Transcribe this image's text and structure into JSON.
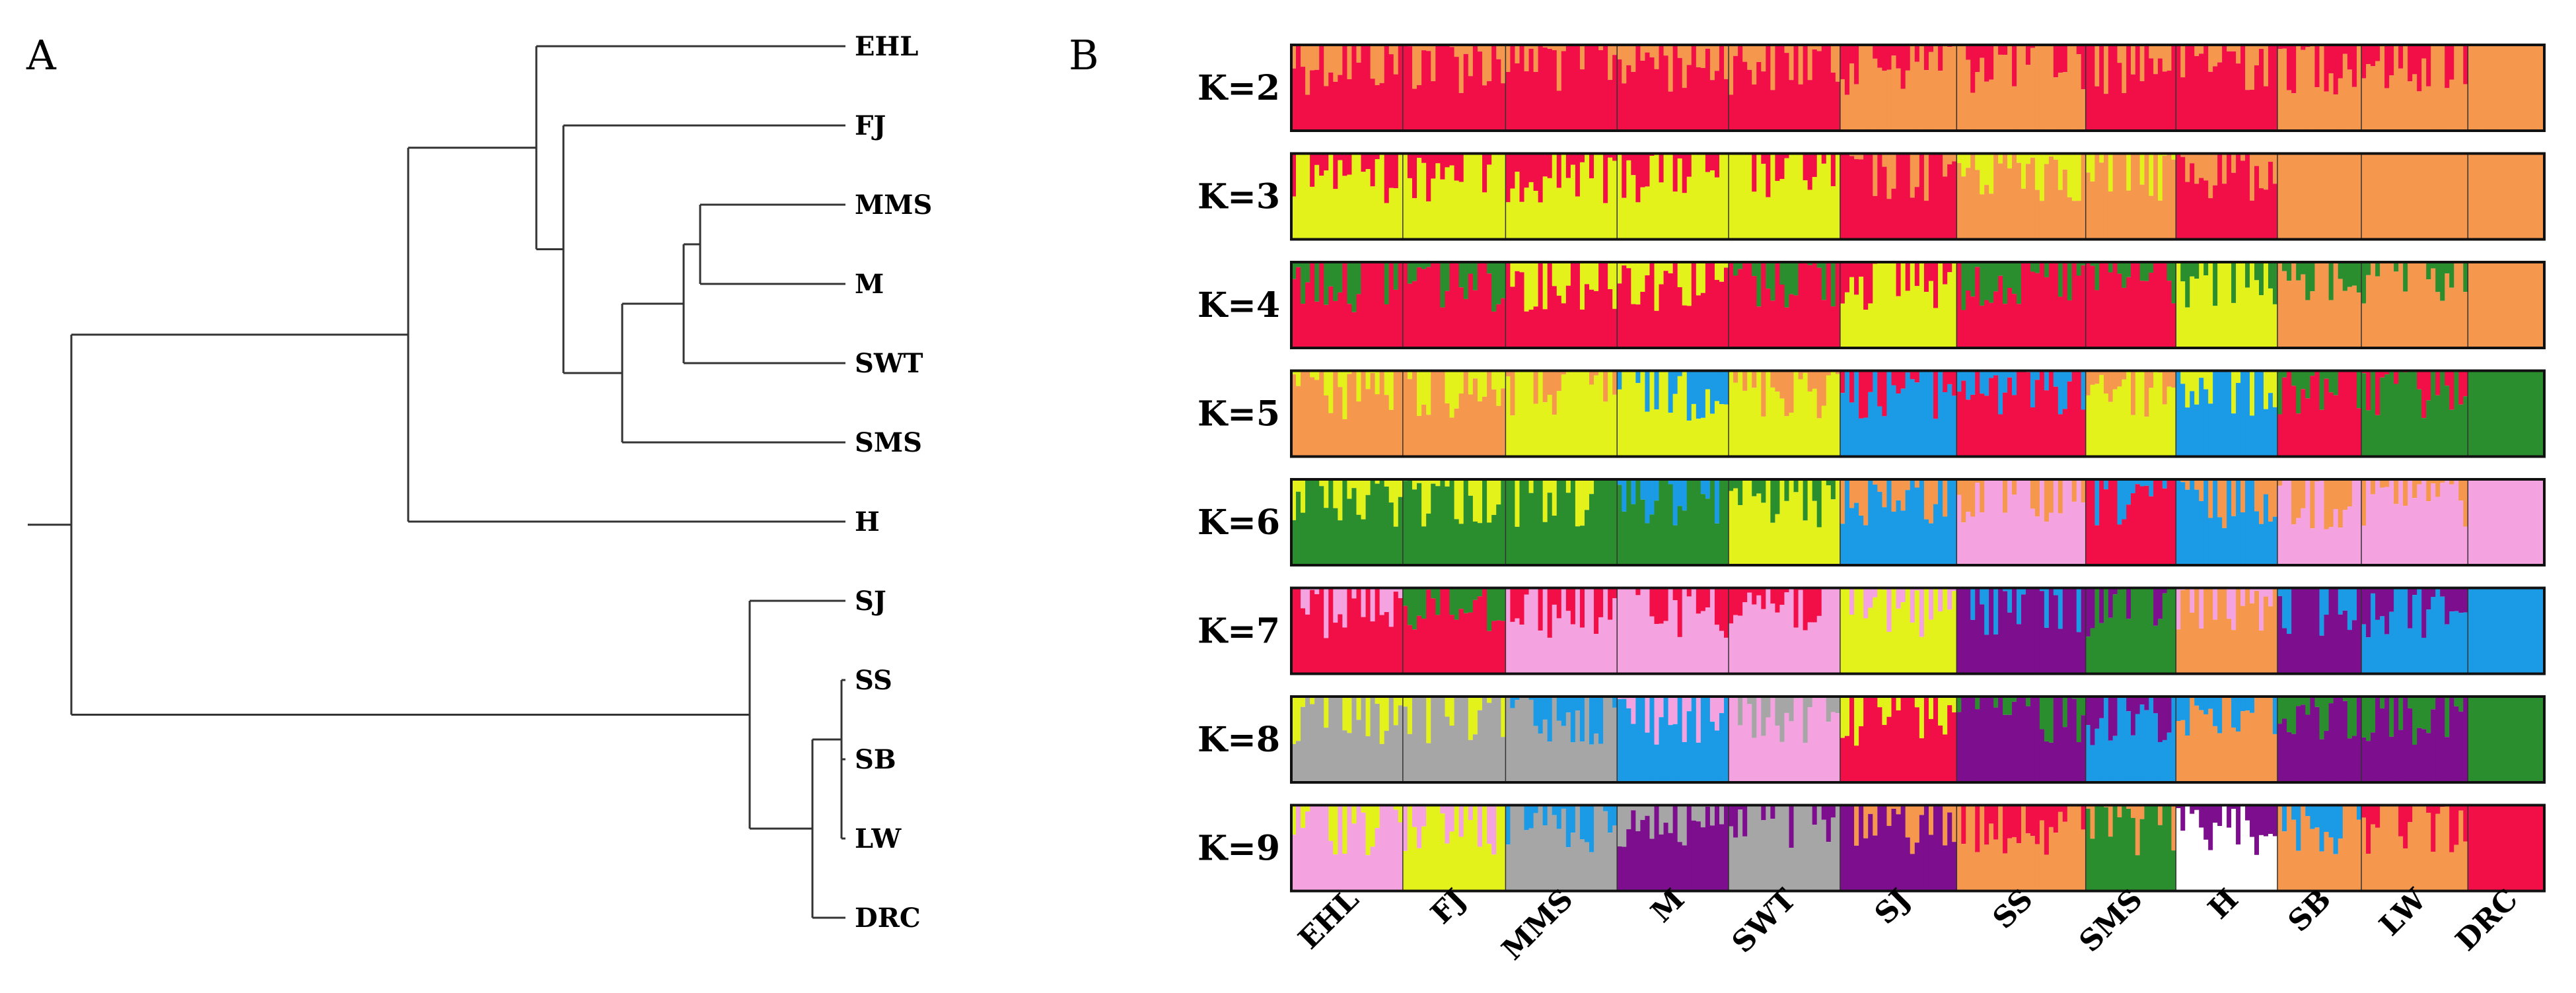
{
  "panel_a_label": "A",
  "panel_b_label": "B",
  "colors": {
    "red": "#F20F47",
    "orange": "#F5974D",
    "yellow": "#E4F21B",
    "green": "#2B8E2E",
    "blue": "#1B9BE6",
    "pink": "#F5A3E0",
    "purple": "#7D0F8E",
    "gray": "#A6A6A6",
    "white": "#FFFFFF"
  },
  "chart_data": [
    {
      "type": "dendrogram",
      "panel": "A",
      "leaves": [
        "EHL",
        "FJ",
        "MMS",
        "M",
        "SWT",
        "SMS",
        "H",
        "SJ",
        "SS",
        "SB",
        "LW",
        "DRC"
      ],
      "topology": "(((EHL,(FJ,(((MMS,M),SWT),SMS))),H),(SJ,((SS,(SB,LW)),DRC)))"
    },
    {
      "type": "structure_barplot",
      "panel": "B",
      "k_labels": [
        "K=2",
        "K=3",
        "K=4",
        "K=5",
        "K=6",
        "K=7",
        "K=8",
        "K=9"
      ],
      "populations": [
        "EHL",
        "FJ",
        "MMS",
        "M",
        "SWT",
        "SJ",
        "SS",
        "SMS",
        "H",
        "SB",
        "LW",
        "DRC"
      ],
      "dominant_cluster": [
        [
          "red",
          "red",
          "red",
          "red",
          "red",
          "orange",
          "orange",
          "red",
          "red",
          "orange",
          "orange",
          "orange"
        ],
        [
          "yellow",
          "yellow",
          "yellow",
          "yellow",
          "yellow",
          "red",
          "orange",
          "orange",
          "red",
          "orange",
          "orange",
          "orange"
        ],
        [
          "red",
          "red",
          "red",
          "red",
          "red",
          "yellow",
          "red",
          "red",
          "yellow",
          "orange",
          "orange",
          "orange"
        ],
        [
          "orange",
          "orange",
          "yellow",
          "yellow",
          "yellow",
          "blue",
          "red",
          "yellow",
          "blue",
          "red",
          "green",
          "green"
        ],
        [
          "green",
          "green",
          "green",
          "green",
          "yellow",
          "blue",
          "pink",
          "red",
          "blue",
          "pink",
          "pink",
          "pink"
        ],
        [
          "red",
          "red",
          "pink",
          "pink",
          "pink",
          "yellow",
          "purple",
          "green",
          "orange",
          "purple",
          "blue",
          "blue"
        ],
        [
          "gray",
          "gray",
          "gray",
          "blue",
          "pink",
          "red",
          "purple",
          "blue",
          "orange",
          "purple",
          "purple",
          "green"
        ],
        [
          "pink",
          "yellow",
          "gray",
          "purple",
          "gray",
          "purple",
          "orange",
          "green",
          "white",
          "orange",
          "orange",
          "red"
        ]
      ],
      "secondary_cluster": [
        [
          "orange",
          "orange",
          "orange",
          "orange",
          "orange",
          "red",
          "red",
          "orange",
          "orange",
          "red",
          "red",
          "orange"
        ],
        [
          "red",
          "red",
          "red",
          "red",
          "red",
          "orange",
          "yellow",
          "yellow",
          "orange",
          "orange",
          "orange",
          "orange"
        ],
        [
          "green",
          "green",
          "yellow",
          "yellow",
          "green",
          "red",
          "green",
          "green",
          "green",
          "green",
          "green",
          "orange"
        ],
        [
          "yellow",
          "yellow",
          "orange",
          "blue",
          "orange",
          "red",
          "blue",
          "orange",
          "yellow",
          "green",
          "red",
          "green"
        ],
        [
          "yellow",
          "yellow",
          "yellow",
          "blue",
          "green",
          "orange",
          "orange",
          "blue",
          "orange",
          "orange",
          "orange",
          "pink"
        ],
        [
          "pink",
          "green",
          "red",
          "red",
          "red",
          "pink",
          "blue",
          "purple",
          "pink",
          "blue",
          "purple",
          "blue"
        ],
        [
          "yellow",
          "yellow",
          "blue",
          "pink",
          "gray",
          "yellow",
          "green",
          "purple",
          "blue",
          "green",
          "green",
          "green"
        ],
        [
          "yellow",
          "pink",
          "blue",
          "gray",
          "purple",
          "orange",
          "red",
          "orange",
          "purple",
          "blue",
          "red",
          "red"
        ]
      ]
    }
  ]
}
